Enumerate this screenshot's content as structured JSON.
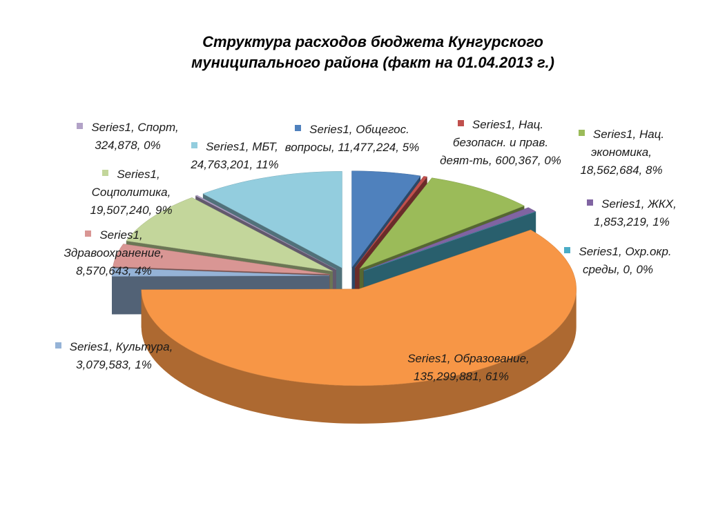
{
  "chart_data": {
    "type": "pie3d",
    "title": "Структура расходов бюджета Кунгурского муниципального района (факт на 01.04.2013 г.)",
    "series_name": "Series1",
    "label_separator": ", ",
    "categories": [
      "Общегос. вопросы",
      "Нац. безопасн. и прав. деят-ть",
      "Нац. экономика",
      "ЖКХ",
      "Охр.окр. среды",
      "Образование",
      "Культура",
      "Здравоохранение",
      "Соцполитика",
      "Спорт",
      "МБТ"
    ],
    "values": [
      11477224,
      600367,
      18562684,
      1853219,
      0,
      135299881,
      3079583,
      8570643,
      19507240,
      324878,
      24763201
    ],
    "value_labels": [
      "11,477,224",
      "600,367",
      "18,562,684",
      "1,853,219",
      "0",
      "135,299,881",
      "3,079,583",
      "8,570,643",
      "19,507,240",
      "324,878",
      "24,763,201"
    ],
    "percents": [
      5,
      0,
      8,
      1,
      0,
      61,
      1,
      4,
      9,
      0,
      11
    ],
    "percent_labels": [
      "5%",
      "0%",
      "8%",
      "1%",
      "0%",
      "61%",
      "1%",
      "4%",
      "9%",
      "0%",
      "11%"
    ],
    "colors": [
      "#4f81bd",
      "#c0504d",
      "#9bbb59",
      "#8064a2",
      "#4bacc6",
      "#f79646",
      "#95b3d7",
      "#d99694",
      "#c3d69b",
      "#b2a2c7",
      "#93cdde"
    ]
  }
}
